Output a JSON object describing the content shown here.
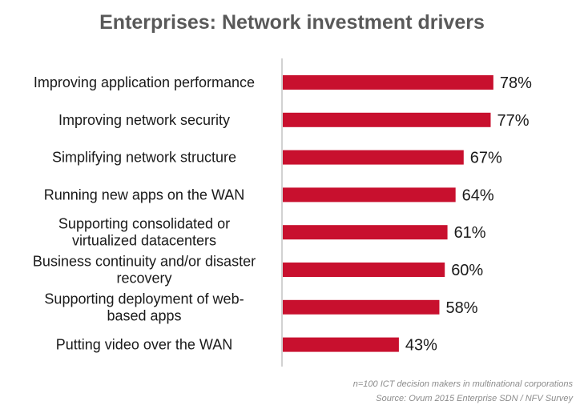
{
  "chart_data": {
    "type": "bar",
    "orientation": "horizontal",
    "title": "Enterprises: Network investment drivers",
    "categories": [
      "Improving application performance",
      "Improving network security",
      "Simplifying network structure",
      "Running new apps on the WAN",
      "Supporting consolidated or virtualized datacenters",
      "Business continuity and/or disaster recovery",
      "Supporting deployment of web-based apps",
      "Putting video over the WAN"
    ],
    "category_lines": [
      [
        "Improving application performance"
      ],
      [
        "Improving network security"
      ],
      [
        "Simplifying network structure"
      ],
      [
        "Running new apps on the WAN"
      ],
      [
        "Supporting consolidated or",
        "virtualized datacenters"
      ],
      [
        "Business continuity and/or disaster",
        "recovery"
      ],
      [
        "Supporting deployment of web-",
        "based apps"
      ],
      [
        "Putting video over the WAN"
      ]
    ],
    "values": [
      78,
      77,
      67,
      64,
      61,
      60,
      58,
      43
    ],
    "value_labels": [
      "78%",
      "77%",
      "67%",
      "64%",
      "61%",
      "60%",
      "58%",
      "43%"
    ],
    "xlim": [
      0,
      100
    ],
    "grid": false,
    "legend": "none",
    "bar_color": "#c8102e"
  },
  "footnote": "n=100 ICT decision makers in multinational corporations",
  "source": "Source: Ovum 2015 Enterprise SDN / NFV Survey"
}
